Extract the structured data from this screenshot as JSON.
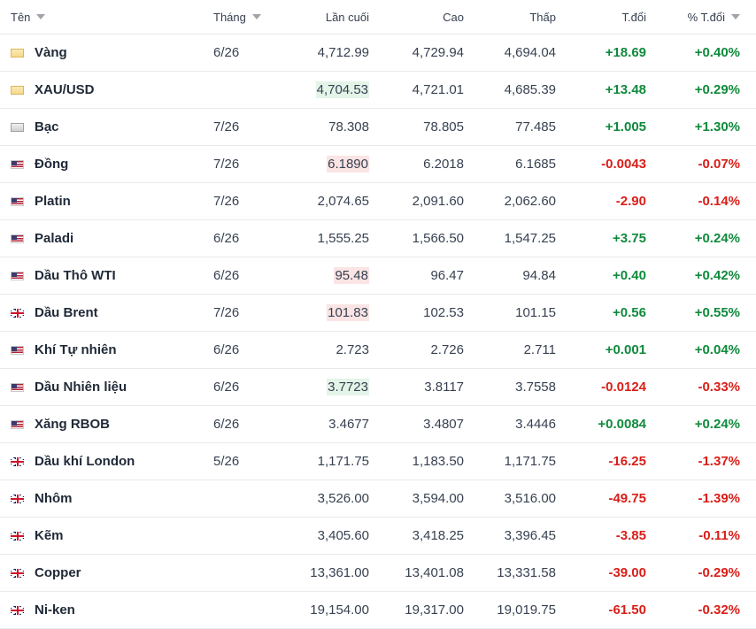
{
  "columns": {
    "name": "Tên",
    "month": "Tháng",
    "last": "Lần cuối",
    "high": "Cao",
    "low": "Thấp",
    "change": "T.đổi",
    "change_pct": "% T.đổi"
  },
  "colors": {
    "positive": "#0f8a3c",
    "negative": "#d91e18",
    "highlight_up": "#e3f4e8",
    "highlight_down": "#fbe4e4"
  },
  "rows": [
    {
      "icon": "gold-flag-icon",
      "name": "Vàng",
      "month": "6/26",
      "last": "4,712.99",
      "high": "4,729.94",
      "low": "4,694.04",
      "change": "+18.69",
      "change_pct": "+0.40%",
      "direction": "up",
      "last_highlight": "none"
    },
    {
      "icon": "gold-flag-icon",
      "name": "XAU/USD",
      "month": "",
      "last": "4,704.53",
      "high": "4,721.01",
      "low": "4,685.39",
      "change": "+13.48",
      "change_pct": "+0.29%",
      "direction": "up",
      "last_highlight": "up"
    },
    {
      "icon": "silver-flag-icon",
      "name": "Bạc",
      "month": "7/26",
      "last": "78.308",
      "high": "78.805",
      "low": "77.485",
      "change": "+1.005",
      "change_pct": "+1.30%",
      "direction": "up",
      "last_highlight": "none"
    },
    {
      "icon": "us-flag-icon",
      "name": "Đồng",
      "month": "7/26",
      "last": "6.1890",
      "high": "6.2018",
      "low": "6.1685",
      "change": "-0.0043",
      "change_pct": "-0.07%",
      "direction": "down",
      "last_highlight": "down"
    },
    {
      "icon": "us-flag-icon",
      "name": "Platin",
      "month": "7/26",
      "last": "2,074.65",
      "high": "2,091.60",
      "low": "2,062.60",
      "change": "-2.90",
      "change_pct": "-0.14%",
      "direction": "down",
      "last_highlight": "none"
    },
    {
      "icon": "us-flag-icon",
      "name": "Paladi",
      "month": "6/26",
      "last": "1,555.25",
      "high": "1,566.50",
      "low": "1,547.25",
      "change": "+3.75",
      "change_pct": "+0.24%",
      "direction": "up",
      "last_highlight": "none"
    },
    {
      "icon": "us-flag-icon",
      "name": "Dầu Thô WTI",
      "month": "6/26",
      "last": "95.48",
      "high": "96.47",
      "low": "94.84",
      "change": "+0.40",
      "change_pct": "+0.42%",
      "direction": "up",
      "last_highlight": "down"
    },
    {
      "icon": "uk-flag-icon",
      "name": "Dầu Brent",
      "month": "7/26",
      "last": "101.83",
      "high": "102.53",
      "low": "101.15",
      "change": "+0.56",
      "change_pct": "+0.55%",
      "direction": "up",
      "last_highlight": "down"
    },
    {
      "icon": "us-flag-icon",
      "name": "Khí Tự nhiên",
      "month": "6/26",
      "last": "2.723",
      "high": "2.726",
      "low": "2.711",
      "change": "+0.001",
      "change_pct": "+0.04%",
      "direction": "up",
      "last_highlight": "none"
    },
    {
      "icon": "us-flag-icon",
      "name": "Dầu Nhiên liệu",
      "month": "6/26",
      "last": "3.7723",
      "high": "3.8117",
      "low": "3.7558",
      "change": "-0.0124",
      "change_pct": "-0.33%",
      "direction": "down",
      "last_highlight": "up"
    },
    {
      "icon": "us-flag-icon",
      "name": "Xăng RBOB",
      "month": "6/26",
      "last": "3.4677",
      "high": "3.4807",
      "low": "3.4446",
      "change": "+0.0084",
      "change_pct": "+0.24%",
      "direction": "up",
      "last_highlight": "none"
    },
    {
      "icon": "uk-flag-icon",
      "name": "Dầu khí London",
      "month": "5/26",
      "last": "1,171.75",
      "high": "1,183.50",
      "low": "1,171.75",
      "change": "-16.25",
      "change_pct": "-1.37%",
      "direction": "down",
      "last_highlight": "none"
    },
    {
      "icon": "uk-flag-icon",
      "name": "Nhôm",
      "month": "",
      "last": "3,526.00",
      "high": "3,594.00",
      "low": "3,516.00",
      "change": "-49.75",
      "change_pct": "-1.39%",
      "direction": "down",
      "last_highlight": "none"
    },
    {
      "icon": "uk-flag-icon",
      "name": "Kẽm",
      "month": "",
      "last": "3,405.60",
      "high": "3,418.25",
      "low": "3,396.45",
      "change": "-3.85",
      "change_pct": "-0.11%",
      "direction": "down",
      "last_highlight": "none"
    },
    {
      "icon": "uk-flag-icon",
      "name": "Copper",
      "month": "",
      "last": "13,361.00",
      "high": "13,401.08",
      "low": "13,331.58",
      "change": "-39.00",
      "change_pct": "-0.29%",
      "direction": "down",
      "last_highlight": "none"
    },
    {
      "icon": "uk-flag-icon",
      "name": "Ni-ken",
      "month": "",
      "last": "19,154.00",
      "high": "19,317.00",
      "low": "19,019.75",
      "change": "-61.50",
      "change_pct": "-0.32%",
      "direction": "down",
      "last_highlight": "none"
    }
  ]
}
